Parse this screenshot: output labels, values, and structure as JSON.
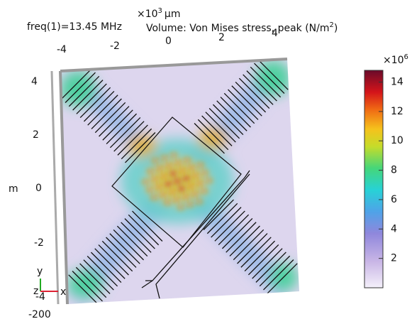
{
  "header": {
    "freq": "freq(1)=13.45 MHz",
    "scale_base": "×10",
    "scale_exp": "3",
    "scale_unit": "µm",
    "title_main": "Volume: Von Mises stress, peak (N/m",
    "title_exp": "2",
    "title_end": ")"
  },
  "x_axis": {
    "ticks": [
      "-4",
      "-2",
      "0",
      "2",
      "4"
    ]
  },
  "y_axis": {
    "label": "m",
    "ticks": [
      "4",
      "2",
      "0",
      "-2",
      "-4"
    ]
  },
  "z_axis": {
    "tick": "-200"
  },
  "triad": {
    "y": "y",
    "z": "z",
    "x": "x"
  },
  "colorbar": {
    "multiplier_base": "×10",
    "multiplier_exp": "6",
    "clim": [
      0,
      14.8
    ],
    "ticks": [
      2,
      4,
      6,
      8,
      10,
      12,
      14
    ]
  }
}
